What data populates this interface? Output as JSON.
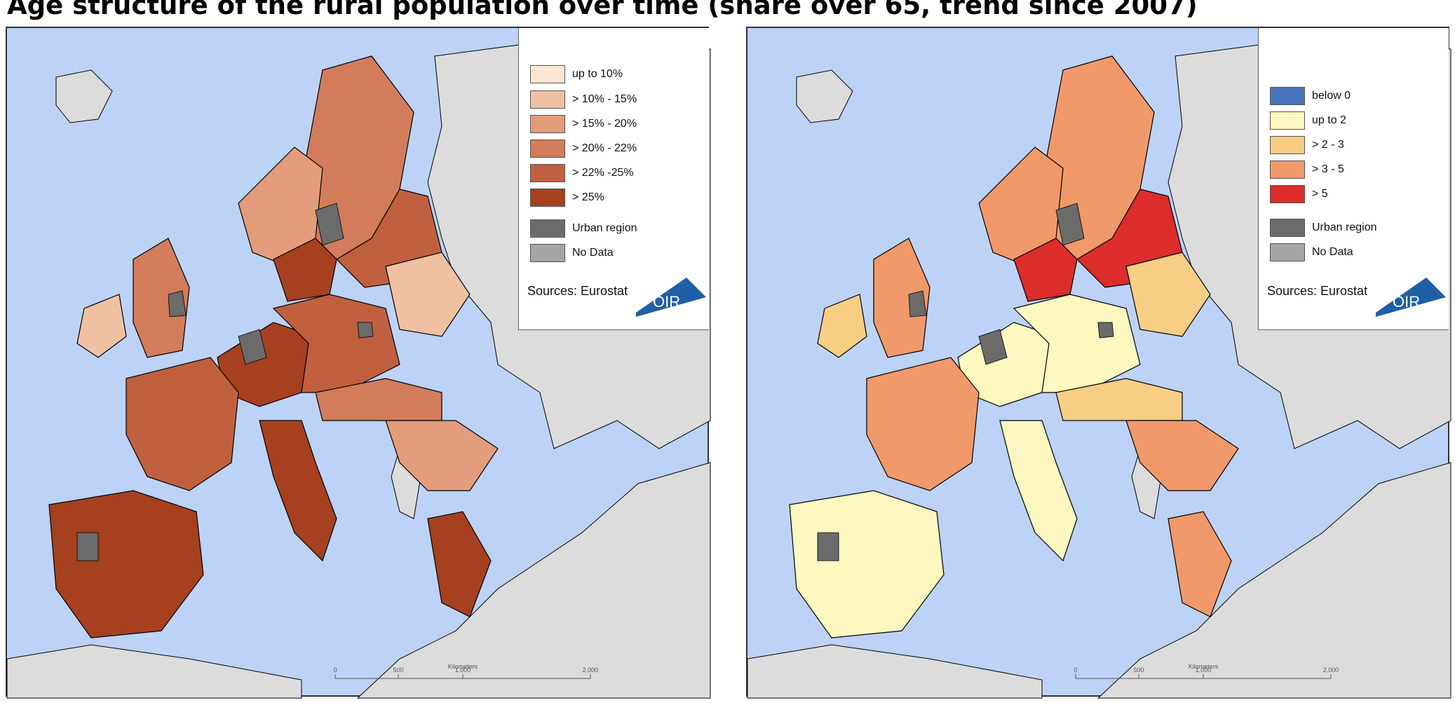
{
  "title": "Age structure of the rural population over time (share over 65, trend since 2007)",
  "colors": {
    "sea": "#bcd2f7",
    "non_eu_land": "#dcdcdc",
    "urban": "#6b6b6b",
    "no_data": "#a5a5a5",
    "border": "#000000"
  },
  "maps": [
    {
      "legend": {
        "items": [
          {
            "label": "up to 10%",
            "color": "#fbe6d4"
          },
          {
            "label": "> 10% - 15%",
            "color": "#f0c0a2"
          },
          {
            "label": "> 15% - 20%",
            "color": "#e39c7c"
          },
          {
            "label": "> 20% - 22%",
            "color": "#d27c5b"
          },
          {
            "label": "> 22% -25%",
            "color": "#c1603f"
          },
          {
            "label": "> 25%",
            "color": "#a6401f"
          }
        ],
        "extra_items": [
          {
            "label": "Urban region",
            "color": "#6b6b6b"
          },
          {
            "label": "No Data",
            "color": "#a5a5a5"
          }
        ],
        "sources": "Sources: Eurostat",
        "logo_text": "ÖIR"
      },
      "scale": {
        "ticks": [
          "0",
          "500",
          "1.000",
          "2.000"
        ],
        "unit": "Kilometers"
      }
    },
    {
      "legend": {
        "items": [
          {
            "label": "below 0",
            "color": "#4a76c0"
          },
          {
            "label": "up to 2",
            "color": "#fdf7c0"
          },
          {
            "label": "> 2 - 3",
            "color": "#f8cd84"
          },
          {
            "label": "> 3 - 5",
            "color": "#f1996a"
          },
          {
            "label": "> 5",
            "color": "#dc2c2c"
          }
        ],
        "extra_items": [
          {
            "label": "Urban region",
            "color": "#6b6b6b"
          },
          {
            "label": "No Data",
            "color": "#a5a5a5"
          }
        ],
        "sources": "Sources: Eurostat",
        "logo_text": "ÖIR"
      },
      "scale": {
        "ticks": [
          "0",
          "500",
          "1.000",
          "2.000"
        ],
        "unit": "Kilometers"
      }
    }
  ]
}
